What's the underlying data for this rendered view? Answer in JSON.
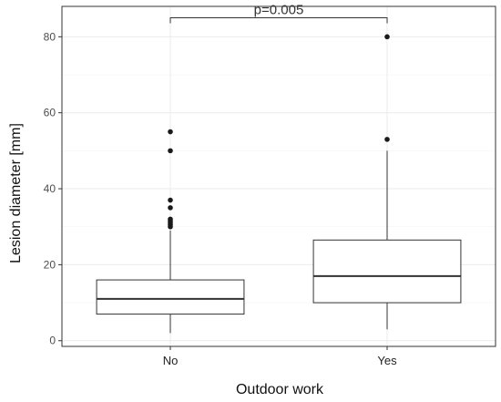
{
  "chart_data": {
    "type": "box",
    "title": "",
    "xlabel": "Outdoor work",
    "ylabel": "Lesion diameter [mm]",
    "ylim": [
      -1.5,
      88
    ],
    "yticks": [
      0,
      20,
      40,
      60,
      80
    ],
    "grid": true,
    "categories": [
      "No",
      "Yes"
    ],
    "boxes": [
      {
        "category": "No",
        "whisker_low": 2,
        "q1": 7,
        "median": 11,
        "q3": 16,
        "whisker_high": 29,
        "outliers": [
          30,
          30.5,
          31,
          31.5,
          32,
          35,
          37,
          50,
          55
        ]
      },
      {
        "category": "Yes",
        "whisker_low": 3,
        "q1": 10,
        "median": 17,
        "q3": 26.5,
        "whisker_high": 50,
        "outliers": [
          53,
          80
        ]
      }
    ],
    "annotation": {
      "text": "p=0.005",
      "y": 85
    },
    "colors": {
      "box_fill": "#ffffff",
      "box_stroke": "#333333",
      "grid": "#ebebeb",
      "panel_border": "#333333"
    }
  }
}
